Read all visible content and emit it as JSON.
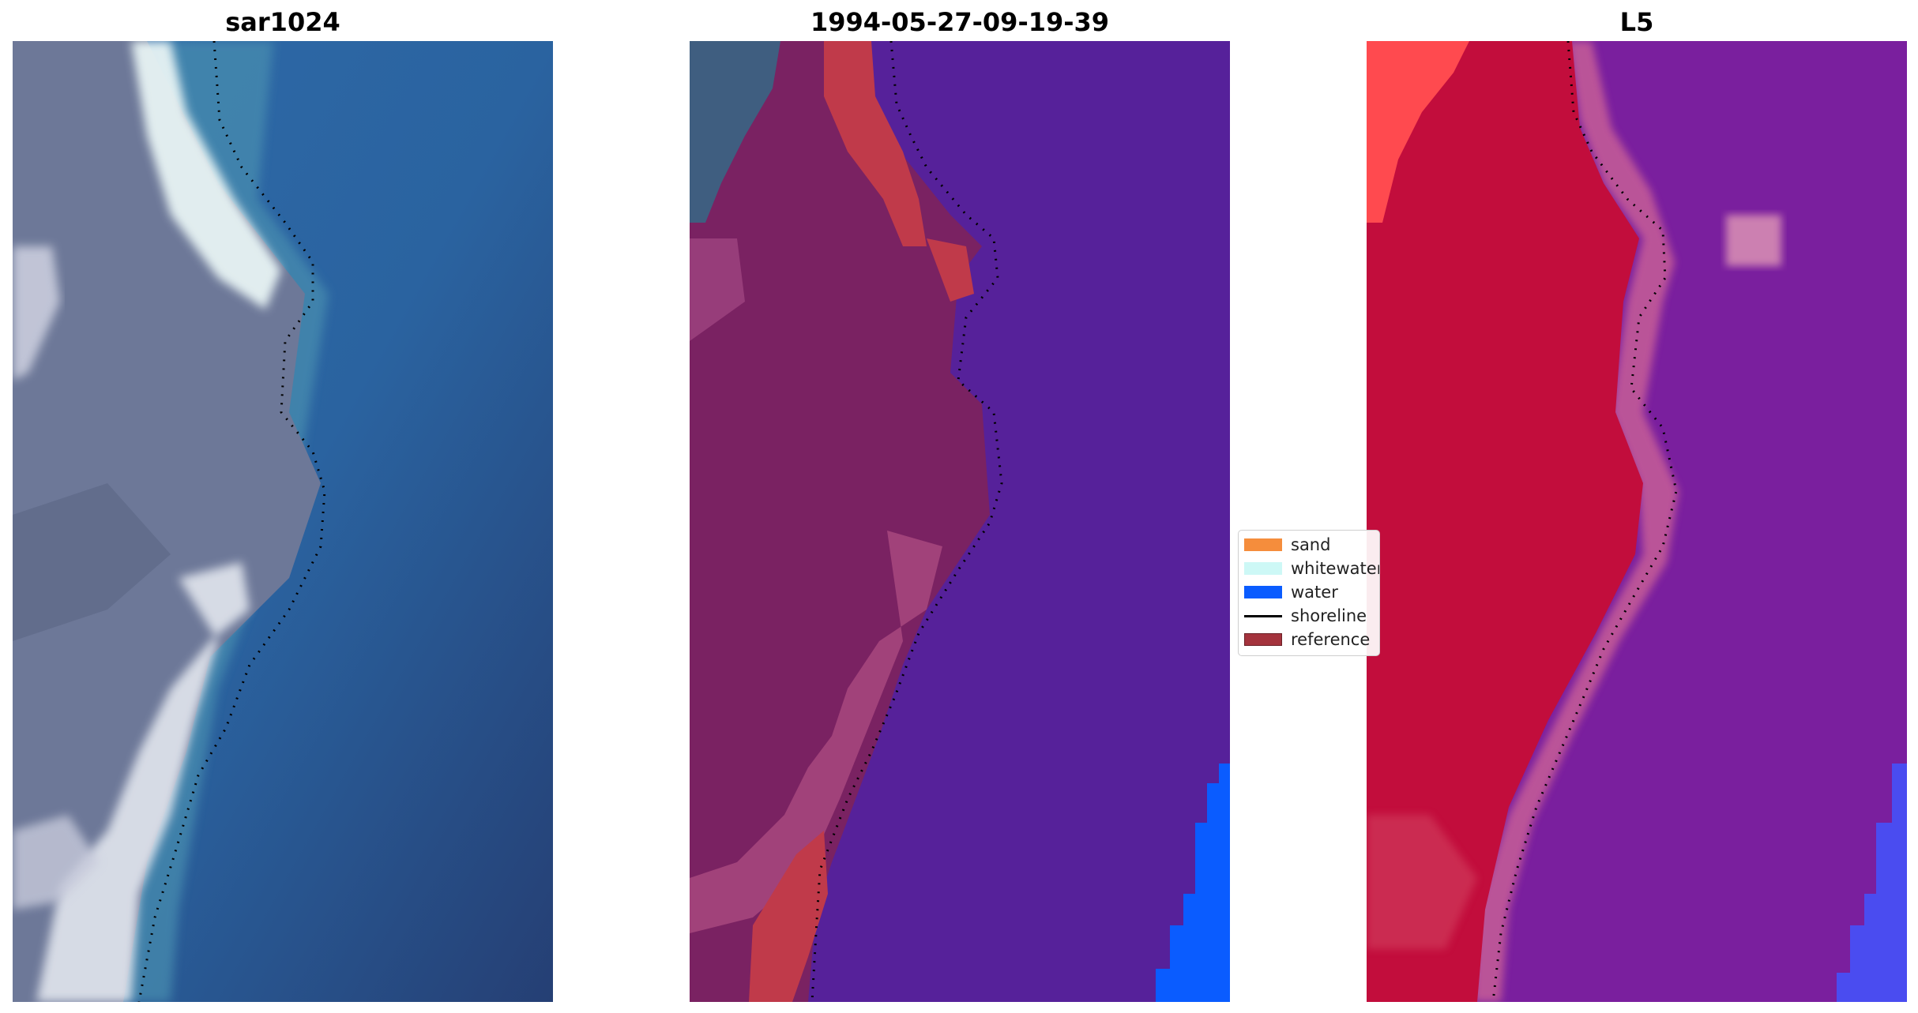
{
  "panels": [
    {
      "title": "sar1024"
    },
    {
      "title": "1994-05-27-09-19-39"
    },
    {
      "title": "L5"
    }
  ],
  "legend": {
    "items": [
      {
        "label": "sand",
        "color": "#f58d3c",
        "kind": "patch"
      },
      {
        "label": "whitewater",
        "color": "#cdf8f6",
        "kind": "patch"
      },
      {
        "label": "water",
        "color": "#0a5cff",
        "kind": "patch"
      },
      {
        "label": "shoreline",
        "color": "#000000",
        "kind": "line"
      },
      {
        "label": "reference",
        "color": "#a4333d",
        "kind": "patch"
      }
    ]
  },
  "colors": {
    "rgb_water": "#2a5f9e",
    "rgb_land": "#6c7595",
    "rgb_whitewater": "#e6f2f2",
    "class_water_overlay": "#56219a",
    "class_land_overlay": "#7a2262",
    "class_reference": "#c03a4a",
    "class_water_pixels": "#0a5cff",
    "prob_land": "#c20d3c",
    "prob_water": "#7a1f9e",
    "prob_water_corner": "#4a4cf0"
  }
}
